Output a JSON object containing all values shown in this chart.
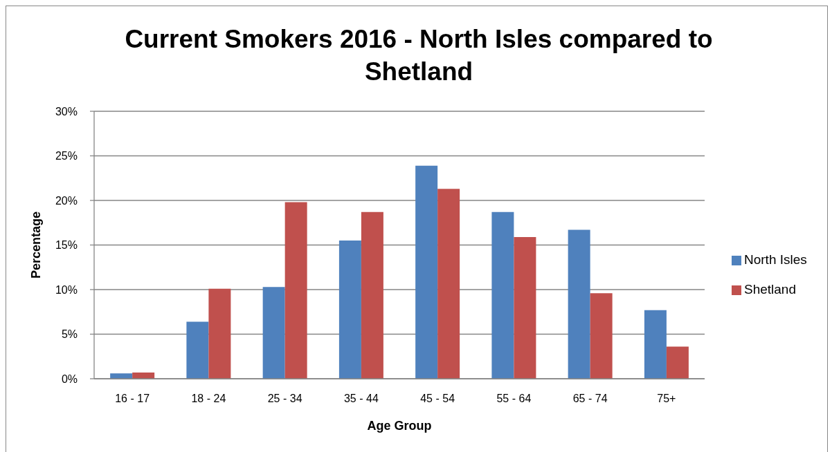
{
  "chart_data": {
    "type": "bar",
    "title": "Current Smokers 2016 - North Isles compared to Shetland",
    "xlabel": "Age Group",
    "ylabel": "Percentage",
    "categories": [
      "16 - 17",
      "18 - 24",
      "25 - 34",
      "35 - 44",
      "45 - 54",
      "55 - 64",
      "65 - 74",
      "75+"
    ],
    "series": [
      {
        "name": "North Isles",
        "color": "#4f81bd",
        "values": [
          0.6,
          6.4,
          10.3,
          15.5,
          23.9,
          18.7,
          16.7,
          7.7
        ]
      },
      {
        "name": "Shetland",
        "color": "#c0504d",
        "values": [
          0.7,
          10.1,
          19.8,
          18.7,
          21.3,
          15.9,
          9.6,
          3.6
        ]
      }
    ],
    "ylim": [
      0,
      30
    ],
    "yticks": [
      {
        "value": 0,
        "label": "0%"
      },
      {
        "value": 5,
        "label": "5%"
      },
      {
        "value": 10,
        "label": "10%"
      },
      {
        "value": 15,
        "label": "15%"
      },
      {
        "value": 20,
        "label": "20%"
      },
      {
        "value": 25,
        "label": "25%"
      },
      {
        "value": 30,
        "label": "30%"
      }
    ],
    "grid": "y",
    "legend": "right"
  }
}
